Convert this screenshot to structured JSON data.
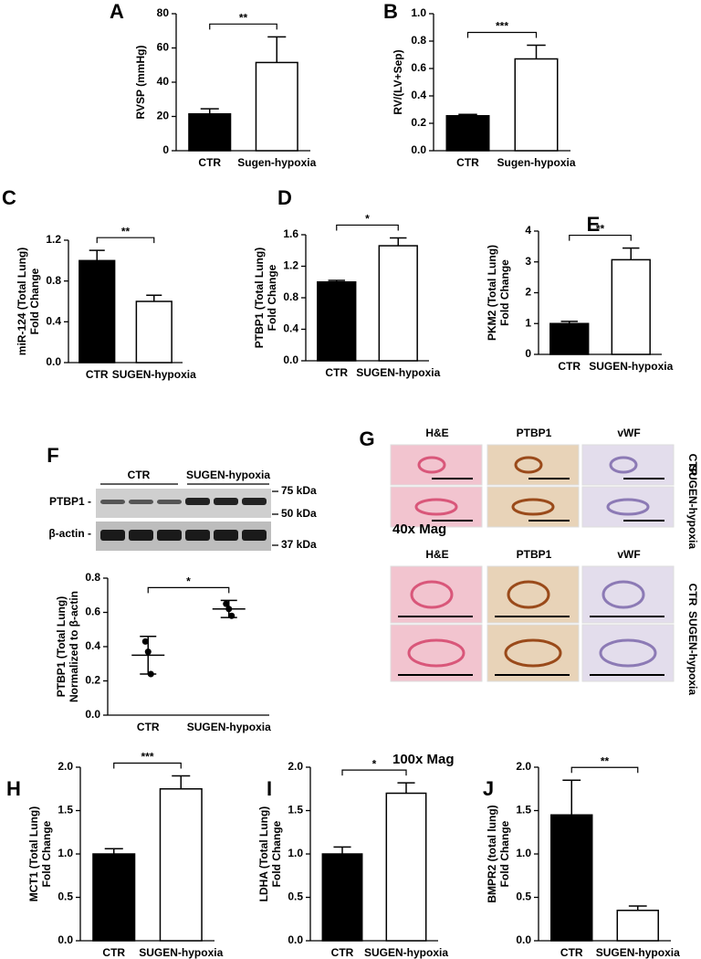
{
  "chart_data": [
    {
      "type": "bar",
      "panel": "A",
      "ylabel": [
        "RVSP (mmHg)"
      ],
      "categories": [
        "CTR",
        "Sugen-hypoxia"
      ],
      "values": [
        21.5,
        51.5
      ],
      "errors": [
        3,
        15
      ],
      "colors": [
        "#000000",
        "#ffffff"
      ],
      "ylim": [
        0,
        80
      ],
      "yticks": [
        0,
        20,
        40,
        60,
        80
      ],
      "significance": "**"
    },
    {
      "type": "bar",
      "panel": "B",
      "ylabel": [
        "RV/(LV+Sep)"
      ],
      "categories": [
        "CTR",
        "Sugen-hypoxia"
      ],
      "values": [
        0.255,
        0.67
      ],
      "errors": [
        0.01,
        0.1
      ],
      "colors": [
        "#000000",
        "#ffffff"
      ],
      "ylim": [
        0,
        1
      ],
      "yticks": [
        {
          "value": 0,
          "label": "0.0"
        },
        0.2,
        0.4,
        0.6,
        0.8,
        {
          "value": 1,
          "label": "1.0"
        }
      ],
      "significance": "***"
    },
    {
      "type": "bar",
      "panel": "C",
      "ylabel": [
        "miR-124 (Total Lung)",
        "Fold Change"
      ],
      "categories": [
        "CTR",
        "SUGEN-hypoxia"
      ],
      "values": [
        1.0,
        0.6
      ],
      "errors": [
        0.1,
        0.06
      ],
      "colors": [
        "#000000",
        "#ffffff"
      ],
      "ylim": [
        0,
        1.2
      ],
      "yticks": [
        {
          "value": 0,
          "label": "0.0"
        },
        0.4,
        0.8,
        1.2
      ],
      "significance": "**"
    },
    {
      "type": "bar",
      "panel": "D",
      "ylabel": [
        "PTBP1 (Total Lung)",
        "Fold Change"
      ],
      "categories": [
        "CTR",
        "SUGEN-hypoxia"
      ],
      "values": [
        1.0,
        1.46
      ],
      "errors": [
        0.02,
        0.1
      ],
      "colors": [
        "#000000",
        "#ffffff"
      ],
      "ylim": [
        0,
        1.6
      ],
      "yticks": [
        {
          "value": 0,
          "label": "0.0"
        },
        0.4,
        0.8,
        1.2,
        1.6
      ],
      "significance": "*"
    },
    {
      "type": "bar",
      "panel": "E",
      "ylabel": [
        "PKM2 (Total Lung)",
        "Fold Change"
      ],
      "categories": [
        "CTR",
        "SUGEN-hypoxia"
      ],
      "values": [
        1.0,
        3.07
      ],
      "errors": [
        0.07,
        0.38
      ],
      "colors": [
        "#000000",
        "#ffffff"
      ],
      "ylim": [
        0,
        4
      ],
      "yticks": [
        0,
        1,
        2,
        3,
        4
      ],
      "significance": "**"
    },
    {
      "type": "dotplot",
      "panel": "F",
      "ylabel": [
        "PTBP1 (Total Lung)",
        "Normalized to β-actin"
      ],
      "categories": [
        "CTR",
        "SUGEN-hypoxia"
      ],
      "points": [
        [
          0.43,
          0.37,
          0.24
        ],
        [
          0.65,
          0.62,
          0.58
        ]
      ],
      "values": [
        0.35,
        0.62
      ],
      "errors": [
        0.11,
        0.05
      ],
      "ylim": [
        0,
        0.8
      ],
      "yticks": [
        {
          "value": 0,
          "label": "0.0"
        },
        0.2,
        0.4,
        0.6,
        0.8
      ],
      "significance": "*"
    },
    {
      "type": "bar",
      "panel": "H",
      "ylabel": [
        "MCT1 (Total Lung)",
        "Fold Change"
      ],
      "categories": [
        "CTR",
        "SUGEN-hypoxia"
      ],
      "values": [
        1.0,
        1.75
      ],
      "errors": [
        0.06,
        0.15
      ],
      "colors": [
        "#000000",
        "#ffffff"
      ],
      "ylim": [
        0,
        2
      ],
      "yticks": [
        {
          "value": 0,
          "label": "0.0"
        },
        0.5,
        {
          "value": 1,
          "label": "1.0"
        },
        1.5,
        {
          "value": 2,
          "label": "2.0"
        }
      ],
      "significance": "***"
    },
    {
      "type": "bar",
      "panel": "I",
      "ylabel": [
        "LDHA (Total Lung)",
        "Fold Change"
      ],
      "categories": [
        "CTR",
        "SUGEN-hypoxia"
      ],
      "values": [
        1.0,
        1.7
      ],
      "errors": [
        0.08,
        0.12
      ],
      "colors": [
        "#000000",
        "#ffffff"
      ],
      "ylim": [
        0,
        2
      ],
      "yticks": [
        {
          "value": 0,
          "label": "0.0"
        },
        0.5,
        {
          "value": 1,
          "label": "1.0"
        },
        1.5,
        {
          "value": 2,
          "label": "2.0"
        }
      ],
      "significance": "*"
    },
    {
      "type": "bar",
      "panel": "J",
      "ylabel": [
        "BMPR2 (total lung)",
        "Fold Change"
      ],
      "categories": [
        "CTR",
        "SUGEN-hypoxia"
      ],
      "values": [
        1.45,
        0.35
      ],
      "errors": [
        0.4,
        0.05
      ],
      "colors": [
        "#000000",
        "#ffffff"
      ],
      "ylim": [
        0,
        2
      ],
      "yticks": [
        {
          "value": 0,
          "label": "0.0"
        },
        0.5,
        {
          "value": 1,
          "label": "1.0"
        },
        1.5,
        {
          "value": 2,
          "label": "2.0"
        }
      ],
      "significance": "**"
    }
  ],
  "blot": {
    "groups": [
      "CTR",
      "SUGEN-hypoxia"
    ],
    "bands": [
      "PTBP1 -",
      "β-actin -"
    ],
    "markers": [
      "75 kDa",
      "50 kDa",
      "37 kDa"
    ]
  },
  "histology": {
    "panel": "G",
    "stains": [
      "H&E",
      "PTBP1",
      "vWF"
    ],
    "conditions": [
      "CTR",
      "SUGEN-hypoxia"
    ],
    "magnifications": [
      "40x Mag",
      "100x Mag"
    ]
  }
}
